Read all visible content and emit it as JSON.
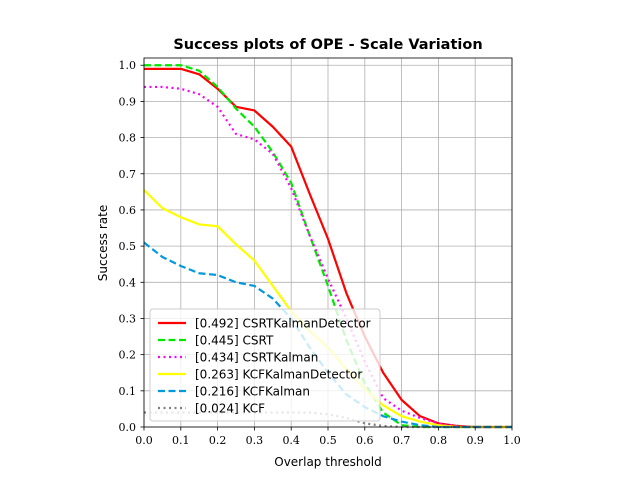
{
  "chart_data": {
    "type": "line",
    "title": "Success plots of OPE - Scale Variation",
    "xlabel": "Overlap threshold",
    "ylabel": "Success rate",
    "xlim": [
      0.0,
      1.0
    ],
    "ylim": [
      0.0,
      1.02
    ],
    "xticks": [
      "0.0",
      "0.1",
      "0.2",
      "0.3",
      "0.4",
      "0.5",
      "0.6",
      "0.7",
      "0.8",
      "0.9",
      "1.0"
    ],
    "yticks": [
      "0.0",
      "0.1",
      "0.2",
      "0.3",
      "0.4",
      "0.5",
      "0.6",
      "0.7",
      "0.8",
      "0.9",
      "1.0"
    ],
    "grid": true,
    "legend_position": "lower-left",
    "x": [
      0.0,
      0.05,
      0.1,
      0.15,
      0.2,
      0.25,
      0.3,
      0.35,
      0.4,
      0.45,
      0.5,
      0.55,
      0.6,
      0.65,
      0.7,
      0.75,
      0.8,
      0.85,
      0.9,
      0.95,
      1.0
    ],
    "series": [
      {
        "name": "[0.492] CSRTKalmanDetector",
        "color": "#ff0000",
        "dash": "solid",
        "values": [
          0.99,
          0.99,
          0.99,
          0.975,
          0.935,
          0.885,
          0.875,
          0.83,
          0.775,
          0.645,
          0.52,
          0.37,
          0.25,
          0.15,
          0.075,
          0.03,
          0.01,
          0.003,
          0.0,
          0.0,
          0.0
        ]
      },
      {
        "name": "[0.445] CSRT",
        "color": "#00e600",
        "dash": "dashed",
        "values": [
          1.0,
          1.0,
          1.0,
          0.985,
          0.94,
          0.88,
          0.83,
          0.76,
          0.675,
          0.53,
          0.39,
          0.24,
          0.12,
          0.04,
          0.005,
          0.0,
          0.0,
          0.0,
          0.0,
          0.0,
          0.0
        ]
      },
      {
        "name": "[0.434] CSRTKalman",
        "color": "#ff00ff",
        "dash": "dotted",
        "values": [
          0.94,
          0.94,
          0.935,
          0.92,
          0.885,
          0.81,
          0.795,
          0.755,
          0.66,
          0.53,
          0.41,
          0.3,
          0.18,
          0.08,
          0.045,
          0.025,
          0.01,
          0.002,
          0.0,
          0.0,
          0.0
        ]
      },
      {
        "name": "[0.263] KCFKalmanDetector",
        "color": "#ffff00",
        "dash": "solid",
        "values": [
          0.655,
          0.605,
          0.58,
          0.56,
          0.555,
          0.505,
          0.46,
          0.39,
          0.32,
          0.265,
          0.22,
          0.16,
          0.105,
          0.06,
          0.03,
          0.015,
          0.005,
          0.0,
          0.0,
          0.0,
          0.0
        ]
      },
      {
        "name": "[0.216] KCFKalman",
        "color": "#0099dd",
        "dash": "dashed",
        "values": [
          0.51,
          0.47,
          0.445,
          0.425,
          0.42,
          0.4,
          0.39,
          0.355,
          0.3,
          0.22,
          0.15,
          0.09,
          0.055,
          0.03,
          0.015,
          0.005,
          0.0,
          0.0,
          0.0,
          0.0,
          0.0
        ]
      },
      {
        "name": "[0.024] KCF",
        "color": "#808080",
        "dash": "dotted",
        "values": [
          0.04,
          0.04,
          0.04,
          0.04,
          0.04,
          0.04,
          0.04,
          0.04,
          0.04,
          0.04,
          0.035,
          0.025,
          0.01,
          0.003,
          0.0,
          0.0,
          0.0,
          0.0,
          0.0,
          0.0,
          0.0
        ]
      }
    ]
  }
}
